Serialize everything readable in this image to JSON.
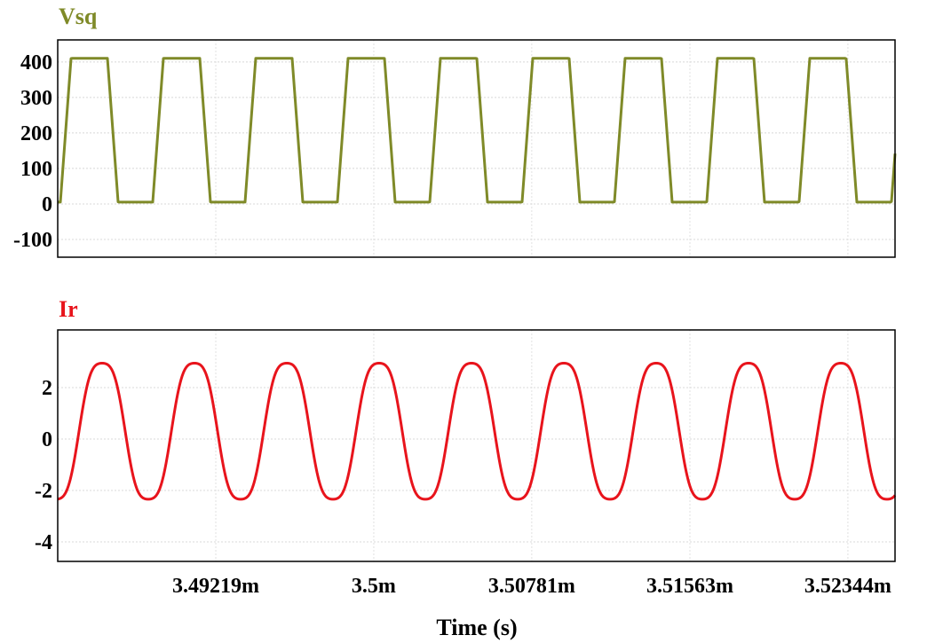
{
  "chart_data": [
    {
      "type": "line",
      "title": "Vsq",
      "title_color": "#7f8a28",
      "line_color": "#7f8a28",
      "ylim": [
        -150,
        462
      ],
      "yticks": [
        400,
        300,
        200,
        100,
        0,
        -100
      ],
      "ytick_labels": [
        "400",
        "300",
        "200",
        "100",
        "0",
        "-100"
      ],
      "xlim": [
        3.484375,
        3.52577
      ],
      "series": [
        {
          "name": "Vsq",
          "waveform": "trapezoid",
          "low": 5,
          "high": 410,
          "period_ms": 0.004565,
          "first_rise_start_ms": 3.484507,
          "rise_ms": 0.000527,
          "high_duration_ms": 0.0018,
          "fall_ms": 0.000527
        }
      ]
    },
    {
      "type": "line",
      "title": "Ir",
      "title_color": "#e8141c",
      "line_color": "#e8141c",
      "ylim": [
        -4.76,
        4.24
      ],
      "yticks": [
        2,
        0,
        -2,
        -4
      ],
      "ytick_labels": [
        "2",
        "0",
        "-2",
        "-4"
      ],
      "xlim": [
        3.484375,
        3.52577
      ],
      "series": [
        {
          "name": "Ir",
          "waveform": "sine",
          "peak": 3.2,
          "trough": -3.1,
          "period_ms": 0.004565,
          "first_peak_ms": 3.48657
        }
      ]
    }
  ],
  "xaxis": {
    "label": "Time (s)",
    "ticks": [
      3.49219,
      3.5,
      3.50781,
      3.51563,
      3.52344
    ],
    "tick_labels": [
      "3.49219m",
      "3.5m",
      "3.50781m",
      "3.51563m",
      "3.52344m"
    ]
  }
}
